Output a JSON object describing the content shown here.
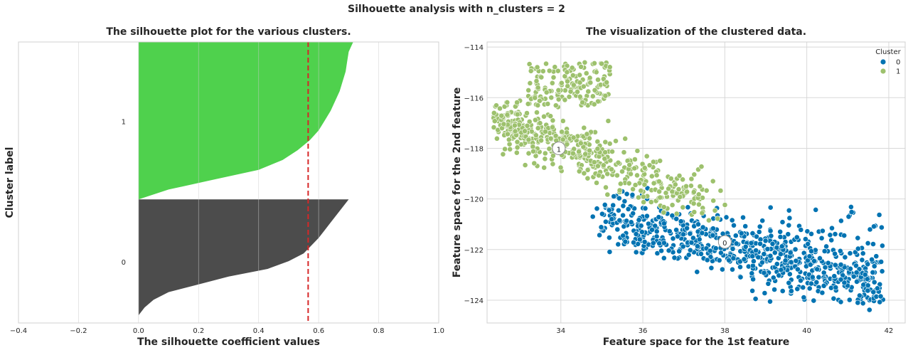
{
  "suptitle": "Silhouette analysis with n_clusters = 2",
  "chart_data": [
    {
      "type": "area",
      "title": "The silhouette plot for the various clusters.",
      "xlabel": "The silhouette coefficient values",
      "ylabel": "Cluster label",
      "xlim": [
        -0.4,
        1.0
      ],
      "xticks": [
        "−0.4",
        "−0.2",
        "0.0",
        "0.2",
        "0.4",
        "0.6",
        "0.8",
        "1.0"
      ],
      "xtick_values": [
        -0.4,
        -0.2,
        0.0,
        0.2,
        0.4,
        0.6,
        0.8,
        1.0
      ],
      "grid": true,
      "average_silhouette": 0.565,
      "clusters": [
        {
          "label": "0",
          "color": "#4c4c4c",
          "size_fraction": 0.44,
          "profile": [
            0.0,
            0.0,
            0.02,
            0.05,
            0.1,
            0.2,
            0.3,
            0.43,
            0.5,
            0.55,
            0.575,
            0.6,
            0.62,
            0.64,
            0.66,
            0.68,
            0.7
          ]
        },
        {
          "label": "1",
          "color": "#4fd14d",
          "size_fraction": 0.56,
          "profile": [
            0.0,
            0.1,
            0.25,
            0.4,
            0.48,
            0.53,
            0.57,
            0.6,
            0.62,
            0.64,
            0.655,
            0.67,
            0.68,
            0.69,
            0.695,
            0.7,
            0.715
          ]
        }
      ]
    },
    {
      "type": "scatter",
      "title": "The visualization of the clustered data.",
      "xlabel": "Feature space for the 1st feature",
      "ylabel": "Feature space for the 2nd feature",
      "xlim": [
        32.2,
        42.4
      ],
      "ylim": [
        -124.9,
        -113.8
      ],
      "xticks": [
        34,
        36,
        38,
        40,
        42
      ],
      "yticks": [
        "−114",
        "−116",
        "−118",
        "−120",
        "−122",
        "−124"
      ],
      "ytick_values": [
        -114,
        -116,
        -118,
        -120,
        -122,
        -124
      ],
      "grid": true,
      "legend": {
        "title": "Cluster",
        "placement": "top-right"
      },
      "series": [
        {
          "name": "0",
          "color": "#0173b2"
        },
        {
          "name": "1",
          "color": "#9dc16d"
        }
      ],
      "centers": [
        {
          "label": "1",
          "x": 33.95,
          "y": -118.0
        },
        {
          "label": "0",
          "x": 38.0,
          "y": -121.7
        }
      ]
    }
  ]
}
